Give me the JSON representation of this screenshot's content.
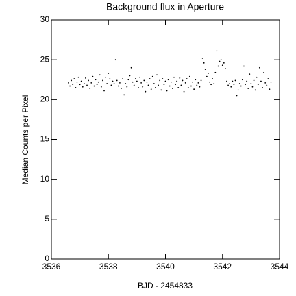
{
  "chart_data": {
    "type": "scatter",
    "title": "Background flux in Aperture",
    "xlabel": "BJD - 2454833",
    "ylabel": "Median Counts per Pixel",
    "color": "#000000",
    "xlim": [
      3536,
      3544
    ],
    "xticks": [
      3536,
      3538,
      3540,
      3542,
      3544
    ],
    "ylim": [
      0,
      30
    ],
    "yticks": [
      0,
      5,
      10,
      15,
      20,
      25,
      30
    ],
    "x": [
      3536.6,
      3536.65,
      3536.7,
      3536.75,
      3536.8,
      3536.85,
      3536.9,
      3536.95,
      3537,
      3537.05,
      3537.1,
      3537.15,
      3537.2,
      3537.25,
      3537.3,
      3537.35,
      3537.4,
      3537.45,
      3537.5,
      3537.55,
      3537.6,
      3537.65,
      3537.7,
      3537.75,
      3537.8,
      3537.85,
      3537.9,
      3537.95,
      3538,
      3538.05,
      3538.1,
      3538.15,
      3538.2,
      3538.25,
      3538.3,
      3538.35,
      3538.4,
      3538.45,
      3538.5,
      3538.55,
      3538.6,
      3538.65,
      3538.7,
      3538.75,
      3538.8,
      3538.85,
      3538.9,
      3538.95,
      3539,
      3539.05,
      3539.1,
      3539.15,
      3539.2,
      3539.25,
      3539.3,
      3539.35,
      3539.4,
      3539.45,
      3539.5,
      3539.55,
      3539.6,
      3539.65,
      3539.7,
      3539.75,
      3539.8,
      3539.85,
      3539.9,
      3539.95,
      3540,
      3540.05,
      3540.1,
      3540.15,
      3540.2,
      3540.25,
      3540.3,
      3540.35,
      3540.4,
      3540.45,
      3540.5,
      3540.55,
      3540.6,
      3540.65,
      3540.7,
      3540.75,
      3540.8,
      3540.85,
      3540.9,
      3540.95,
      3541,
      3541.05,
      3541.1,
      3541.15,
      3541.2,
      3541.25,
      3541.3,
      3541.35,
      3541.4,
      3541.45,
      3541.5,
      3541.55,
      3541.6,
      3541.65,
      3541.7,
      3541.75,
      3541.8,
      3541.85,
      3541.9,
      3541.95,
      3542,
      3542.05,
      3542.1,
      3542.15,
      3542.2,
      3542.25,
      3542.3,
      3542.35,
      3542.4,
      3542.45,
      3542.5,
      3542.55,
      3542.6,
      3542.65,
      3542.7,
      3542.75,
      3542.8,
      3542.85,
      3542.9,
      3542.95,
      3543,
      3543.05,
      3543.1,
      3543.15,
      3543.2,
      3543.25,
      3543.3,
      3543.35,
      3543.4,
      3543.45,
      3543.5,
      3543.55,
      3543.6,
      3543.65,
      3543.7
    ],
    "values": [
      22.1,
      21.7,
      22.4,
      21.9,
      22.6,
      21.5,
      22.2,
      22.8,
      21.9,
      22.3,
      21.6,
      22.0,
      22.7,
      21.8,
      22.4,
      21.4,
      22.1,
      22.9,
      21.7,
      22.5,
      21.9,
      22.2,
      23.1,
      21.6,
      22.4,
      21.1,
      22.8,
      22.0,
      23.3,
      22.6,
      21.8,
      22.3,
      22.0,
      25.0,
      22.4,
      21.7,
      22.1,
      21.4,
      22.6,
      20.6,
      22.0,
      21.6,
      22.5,
      23.0,
      24.0,
      22.2,
      21.8,
      22.6,
      22.3,
      21.5,
      22.8,
      22.1,
      21.6,
      22.4,
      21.0,
      22.2,
      21.8,
      22.6,
      21.3,
      22.9,
      22.0,
      21.5,
      23.1,
      21.8,
      22.4,
      21.2,
      22.6,
      21.9,
      22.3,
      21.1,
      22.5,
      21.7,
      22.2,
      21.4,
      22.8,
      21.9,
      22.3,
      21.5,
      22.7,
      21.8,
      22.4,
      21.0,
      22.1,
      22.6,
      21.5,
      22.9,
      21.7,
      22.2,
      21.3,
      22.5,
      21.8,
      22.1,
      21.6,
      22.4,
      25.2,
      24.6,
      23.8,
      22.9,
      23.3,
      22.2,
      21.9,
      22.6,
      22.0,
      23.4,
      26.1,
      24.2,
      24.8,
      25.0,
      24.3,
      24.6,
      23.9,
      22.3,
      21.8,
      22.0,
      21.6,
      22.3,
      21.9,
      22.4,
      20.5,
      21.2,
      22.0,
      21.7,
      22.5,
      24.2,
      21.9,
      22.3,
      21.4,
      23.2,
      22.0,
      21.6,
      22.4,
      21.2,
      22.8,
      21.9,
      24.0,
      22.3,
      21.5,
      23.4,
      22.1,
      21.8,
      22.6,
      21.3,
      22.2
    ]
  }
}
